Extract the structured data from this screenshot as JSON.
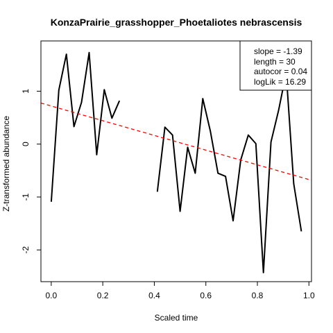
{
  "chart_data": {
    "type": "line",
    "title": "KonzaPrairie_grasshopper_Phoetaliotes nebrascensis",
    "xlabel": "Scaled time",
    "ylabel": "Z-transformed abundance",
    "xlim": [
      -0.04,
      1.01
    ],
    "ylim": [
      -2.6,
      1.95
    ],
    "x_ticks": [
      0.0,
      0.2,
      0.4,
      0.6,
      0.8,
      1.0
    ],
    "x_tick_labels": [
      "0.0",
      "0.2",
      "0.4",
      "0.6",
      "0.8",
      "1.0"
    ],
    "y_ticks": [
      -2,
      -1,
      0,
      1
    ],
    "y_tick_labels": [
      "-2",
      "-1",
      "0",
      "1"
    ],
    "grid": false,
    "series": [
      {
        "color": "#000000",
        "segments": [
          [
            {
              "x": 0.0,
              "y": -1.09
            },
            {
              "x": 0.0294,
              "y": 1.02
            },
            {
              "x": 0.0588,
              "y": 1.7
            },
            {
              "x": 0.0882,
              "y": 0.33
            },
            {
              "x": 0.1176,
              "y": 0.79
            },
            {
              "x": 0.1471,
              "y": 1.73
            },
            {
              "x": 0.1765,
              "y": -0.2
            },
            {
              "x": 0.2059,
              "y": 1.03
            },
            {
              "x": 0.2353,
              "y": 0.49
            },
            {
              "x": 0.2647,
              "y": 0.82
            }
          ],
          [
            {
              "x": 0.4118,
              "y": -0.9
            },
            {
              "x": 0.4412,
              "y": 0.32
            },
            {
              "x": 0.4706,
              "y": 0.17
            },
            {
              "x": 0.5,
              "y": -1.27
            },
            {
              "x": 0.5294,
              "y": -0.06
            },
            {
              "x": 0.5588,
              "y": -0.55
            },
            {
              "x": 0.5882,
              "y": 0.86
            },
            {
              "x": 0.6176,
              "y": 0.24
            },
            {
              "x": 0.6471,
              "y": -0.55
            },
            {
              "x": 0.6765,
              "y": -0.61
            },
            {
              "x": 0.7059,
              "y": -1.45
            },
            {
              "x": 0.7353,
              "y": -0.3
            },
            {
              "x": 0.7647,
              "y": 0.17
            },
            {
              "x": 0.7941,
              "y": 0.01
            },
            {
              "x": 0.8235,
              "y": -2.43
            },
            {
              "x": 0.8529,
              "y": 0.04
            },
            {
              "x": 0.8824,
              "y": 0.64
            },
            {
              "x": 0.9118,
              "y": 1.35
            },
            {
              "x": 0.9412,
              "y": -0.75
            },
            {
              "x": 0.9706,
              "y": -1.65
            }
          ]
        ]
      }
    ],
    "trend_line": {
      "color": "#ff0000",
      "style": "dashed",
      "slope": -1.39,
      "intercept": 0.72
    },
    "legend": {
      "position": "top-right",
      "lines": [
        "slope = -1.39",
        "length = 30",
        "autocor = 0.04",
        "logLik = 16.29"
      ]
    }
  }
}
